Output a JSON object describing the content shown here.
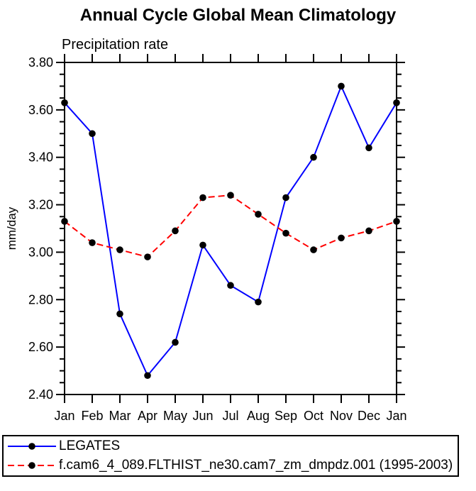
{
  "chart_data": {
    "type": "line",
    "title": "Annual Cycle Global Mean Climatology",
    "subtitle": "Precipitation rate",
    "ylabel": "mm/day",
    "categories": [
      "Jan",
      "Feb",
      "Mar",
      "Apr",
      "May",
      "Jun",
      "Jul",
      "Aug",
      "Sep",
      "Oct",
      "Nov",
      "Dec",
      "Jan"
    ],
    "series": [
      {
        "name": "LEGATES",
        "color": "#0000ff",
        "line_style": "solid",
        "marker": "circle",
        "marker_color": "#000000",
        "values": [
          3.63,
          3.5,
          2.74,
          2.48,
          2.62,
          3.03,
          2.86,
          2.79,
          3.23,
          3.4,
          3.7,
          3.44,
          3.63
        ]
      },
      {
        "name": "f.cam6_4_089.FLTHIST_ne30.cam7_zm_dmpdz.001 (1995-2003)",
        "color": "#ff0000",
        "line_style": "dashed",
        "marker": "circle",
        "marker_color": "#000000",
        "values": [
          3.13,
          3.04,
          3.01,
          2.98,
          3.09,
          3.23,
          3.24,
          3.16,
          3.08,
          3.01,
          3.06,
          3.09,
          3.13
        ]
      }
    ],
    "ylim": [
      2.4,
      3.8
    ],
    "ytick_step": 0.2,
    "yminor_step": 0.05,
    "ytick_labels": [
      "2.40",
      "2.60",
      "2.80",
      "3.00",
      "3.20",
      "3.40",
      "3.60",
      "3.80"
    ],
    "grid": false,
    "axis_color": "#000000",
    "legend_position": "bottom-left-box"
  }
}
